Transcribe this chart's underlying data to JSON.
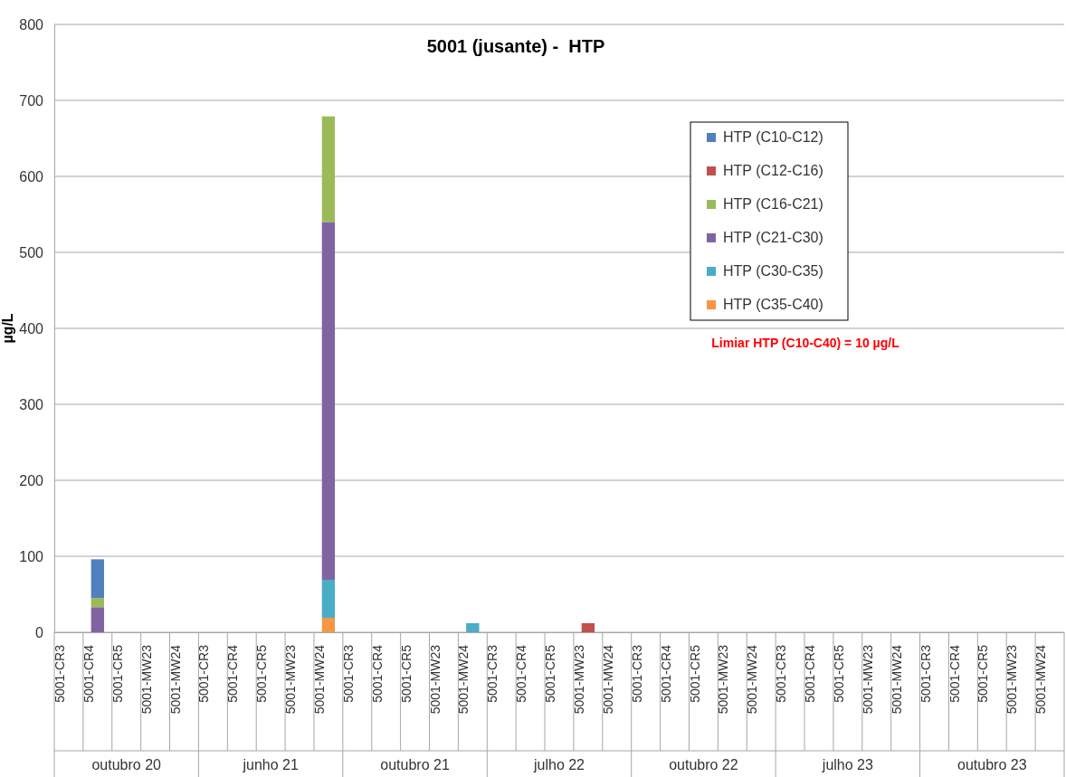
{
  "chart_data": {
    "type": "bar",
    "title": "5001 (jusante) -  HTP",
    "ylabel": "µg/L",
    "categories": [
      "5001-CR3",
      "5001-CR4",
      "5001-CR5",
      "5001-MW23",
      "5001-MW24",
      "5001-CR3",
      "5001-CR4",
      "5001-CR5",
      "5001-MW23",
      "5001-MW24",
      "5001-CR3",
      "5001-CR4",
      "5001-CR5",
      "5001-MW23",
      "5001-MW24",
      "5001-CR3",
      "5001-CR4",
      "5001-CR5",
      "5001-MW23",
      "5001-MW24",
      "5001-CR3",
      "5001-CR4",
      "5001-CR5",
      "5001-MW23",
      "5001-MW24",
      "5001-CR3",
      "5001-CR4",
      "5001-CR5",
      "5001-MW23",
      "5001-MW24",
      "5001-CR3",
      "5001-CR4",
      "5001-CR5",
      "5001-MW23",
      "5001-MW24"
    ],
    "series": [
      {
        "name": "HTP (C35-C40)",
        "color": "#f79646",
        "values": [
          null,
          null,
          null,
          null,
          null,
          null,
          null,
          null,
          null,
          19,
          null,
          null,
          null,
          null,
          null,
          null,
          null,
          null,
          null,
          null,
          null,
          null,
          null,
          null,
          null,
          null,
          null,
          null,
          null,
          null,
          null,
          null,
          null,
          null,
          null
        ]
      },
      {
        "name": "HTP (C30-C35)",
        "color": "#4bacc6",
        "values": [
          null,
          null,
          null,
          null,
          null,
          null,
          null,
          null,
          null,
          50,
          null,
          null,
          null,
          null,
          12,
          null,
          null,
          null,
          null,
          null,
          null,
          null,
          null,
          null,
          null,
          null,
          null,
          null,
          null,
          null,
          null,
          null,
          null,
          null,
          null
        ]
      },
      {
        "name": "HTP (C21-C30)",
        "color": "#8064a2",
        "values": [
          null,
          33,
          null,
          null,
          null,
          null,
          null,
          null,
          null,
          471,
          null,
          null,
          null,
          null,
          null,
          null,
          null,
          null,
          null,
          null,
          null,
          null,
          null,
          null,
          null,
          null,
          null,
          null,
          null,
          null,
          null,
          null,
          null,
          null,
          null
        ]
      },
      {
        "name": "HTP (C16-C21)",
        "color": "#9bbb59",
        "values": [
          null,
          12,
          null,
          null,
          null,
          null,
          null,
          null,
          null,
          139,
          null,
          null,
          null,
          null,
          null,
          null,
          null,
          null,
          null,
          null,
          null,
          null,
          null,
          null,
          null,
          null,
          null,
          null,
          null,
          null,
          null,
          null,
          null,
          null,
          null
        ]
      },
      {
        "name": "HTP (C12-C16)",
        "color": "#c0504d",
        "values": [
          null,
          null,
          null,
          null,
          null,
          null,
          null,
          null,
          null,
          null,
          null,
          null,
          null,
          null,
          null,
          null,
          null,
          null,
          12,
          null,
          null,
          null,
          null,
          null,
          null,
          null,
          null,
          null,
          null,
          null,
          null,
          null,
          null,
          null,
          null
        ]
      },
      {
        "name": "HTP (C10-C12)",
        "color": "#4f81bd",
        "values": [
          null,
          51,
          null,
          null,
          null,
          null,
          null,
          null,
          null,
          null,
          null,
          null,
          null,
          null,
          null,
          null,
          null,
          null,
          null,
          null,
          null,
          null,
          null,
          null,
          null,
          null,
          null,
          null,
          null,
          null,
          null,
          null,
          null,
          null,
          null
        ]
      }
    ],
    "stacked": true,
    "ylim": [
      0,
      800
    ],
    "yticks": [
      0,
      100,
      200,
      300,
      400,
      500,
      600,
      700,
      800
    ],
    "grid": "y",
    "legend": "top right",
    "annotations": [
      "Limiar HTP (C10-C40) = 10 µg/L",
      "outubro 20",
      "junho 21",
      "outubro 21",
      "julho 22",
      "outubro 22",
      "julho 23",
      "outubro 23"
    ]
  }
}
